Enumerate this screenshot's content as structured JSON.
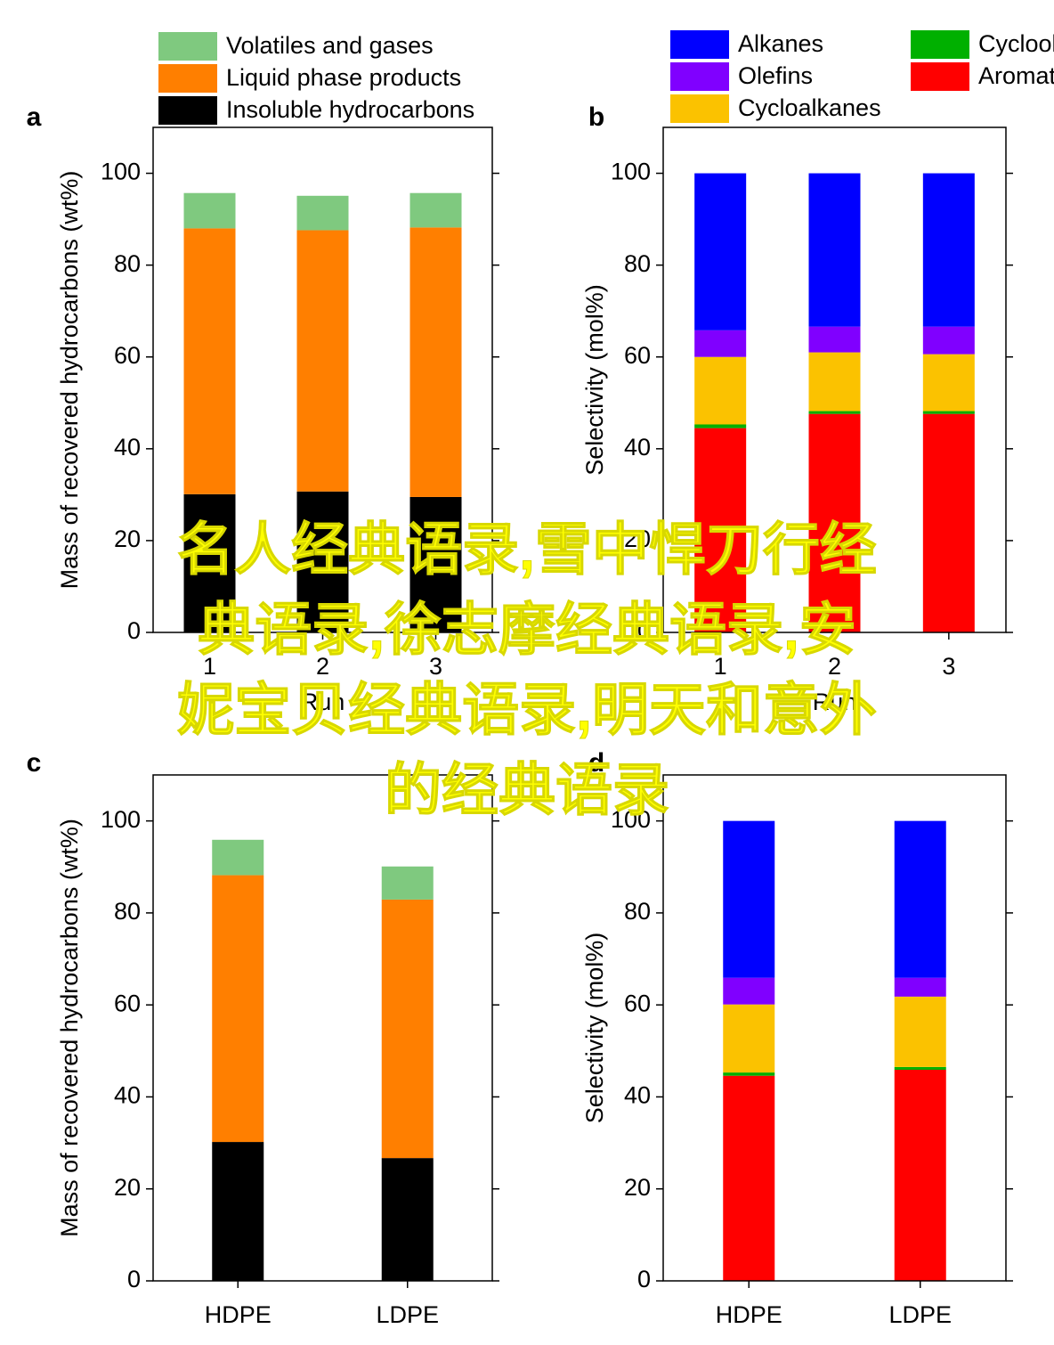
{
  "chart_data": [
    {
      "type": "bar",
      "stacked": true,
      "title": "a",
      "x_label": "Run",
      "y_label": "Mass of recovered hydrocarbons (wt%)",
      "categories": [
        "1",
        "2",
        "3"
      ],
      "ylim": [
        0,
        110
      ],
      "yticks": [
        0,
        20,
        40,
        60,
        80,
        100
      ],
      "series": [
        {
          "name": "Insoluble hydrocarbons",
          "color": "#000000",
          "values": [
            30.1,
            30.7,
            29.5
          ]
        },
        {
          "name": "Liquid phase products",
          "color": "#ff7f00",
          "values": [
            57.9,
            56.9,
            58.7
          ]
        },
        {
          "name": "Volatiles and gases",
          "color": "#7fc97f",
          "values": [
            7.7,
            7.5,
            7.5
          ]
        }
      ]
    },
    {
      "type": "bar",
      "stacked": true,
      "title": "b",
      "x_label": "Run",
      "y_label": "Selectivity (mol%)",
      "categories": [
        "1",
        "2",
        "3"
      ],
      "ylim": [
        0,
        110
      ],
      "yticks": [
        0,
        20,
        40,
        60,
        80,
        100
      ],
      "series": [
        {
          "name": "Aromatics",
          "color": "#ff0000",
          "values": [
            44.5,
            47.6,
            47.6
          ]
        },
        {
          "name": "Cycloolefins",
          "color": "#00b000",
          "values": [
            0.8,
            0.6,
            0.6
          ]
        },
        {
          "name": "Cycloalkanes",
          "color": "#fbc200",
          "values": [
            14.7,
            12.8,
            12.4
          ]
        },
        {
          "name": "Olefins",
          "color": "#8000ff",
          "values": [
            5.8,
            5.6,
            6.0
          ]
        },
        {
          "name": "Alkanes",
          "color": "#0000ff",
          "values": [
            34.2,
            33.4,
            33.4
          ]
        }
      ]
    },
    {
      "type": "bar",
      "stacked": true,
      "title": "c",
      "y_label": "Mass of recovered hydrocarbons (wt%)",
      "categories": [
        "HDPE",
        "LDPE"
      ],
      "ylim": [
        0,
        110
      ],
      "yticks": [
        0,
        20,
        40,
        60,
        80,
        100
      ],
      "series": [
        {
          "color": "#000000",
          "values": [
            30.2,
            26.7
          ]
        },
        {
          "color": "#ff7f00",
          "values": [
            58.0,
            56.2
          ]
        },
        {
          "color": "#7fc97f",
          "values": [
            7.7,
            7.2
          ]
        }
      ]
    },
    {
      "type": "bar",
      "stacked": true,
      "title": "d",
      "y_label": "Selectivity (mol%)",
      "categories": [
        "HDPE",
        "LDPE"
      ],
      "ylim": [
        0,
        110
      ],
      "yticks": [
        0,
        20,
        40,
        60,
        80,
        100
      ],
      "series": [
        {
          "color": "#ff0000",
          "values": [
            44.6,
            45.9
          ]
        },
        {
          "color": "#00b000",
          "values": [
            0.7,
            0.6
          ]
        },
        {
          "color": "#fbc200",
          "values": [
            14.8,
            15.3
          ]
        },
        {
          "color": "#8000ff",
          "values": [
            5.8,
            4.1
          ]
        },
        {
          "color": "#0000ff",
          "values": [
            34.1,
            34.1
          ]
        }
      ]
    }
  ],
  "overlay": {
    "lines": [
      "名人经典语录,雪中悍刀行经",
      "典语录,徐志摩经典语录,安",
      "妮宝贝经典语录,明天和意外",
      "的经典语录"
    ]
  }
}
